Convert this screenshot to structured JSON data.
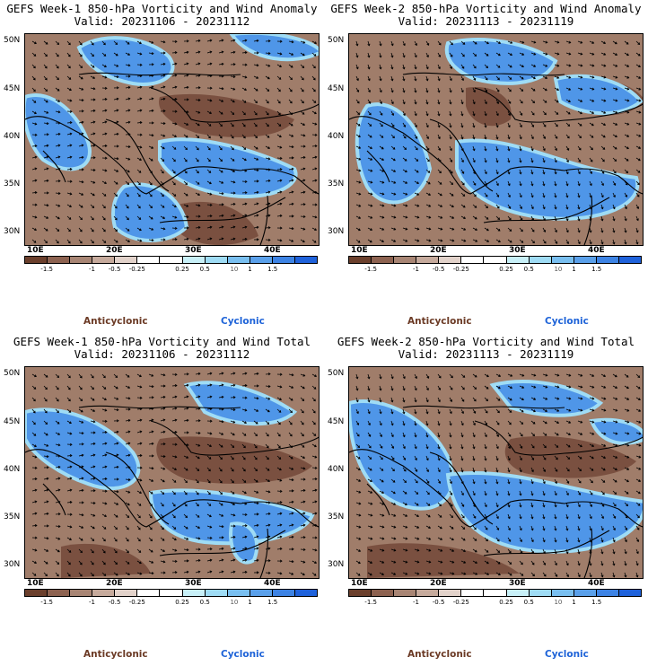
{
  "panels": [
    {
      "title": "GEFS Week-1 850-hPa Vorticity and Wind Anomaly",
      "subtitle": "Valid: 20231106 - 20231112"
    },
    {
      "title": "GEFS Week-2 850-hPa Vorticity and Wind Anomaly",
      "subtitle": "Valid: 20231113 - 20231119"
    },
    {
      "title": "GEFS Week-1 850-hPa Vorticity and Wind Total",
      "subtitle": "Valid: 20231106 - 20231112"
    },
    {
      "title": "GEFS Week-2 850-hPa Vorticity and Wind Total",
      "subtitle": "Valid: 20231113 - 20231119"
    }
  ],
  "lat_labels": [
    "50N",
    "45N",
    "40N",
    "35N",
    "30N"
  ],
  "lon_labels": [
    "10E",
    "20E",
    "30E",
    "40E"
  ],
  "colorbar": {
    "colors": [
      "#6b3f2c",
      "#8d6250",
      "#a88574",
      "#c6aa9c",
      "#e2d2ca",
      "#ffffff",
      "#ffffff",
      "#c8f0f8",
      "#9fdcf5",
      "#79bff0",
      "#5aa0ea",
      "#3d83e4",
      "#1f62db"
    ],
    "tick_labels": [
      "-1.5",
      "-1",
      "-0.5",
      "-0.25",
      "0.25",
      "0.5",
      "1",
      "1.5"
    ],
    "scale_note": "10"
  },
  "legend": {
    "anticyclonic": "Anticyclonic",
    "cyclonic": "Cyclonic"
  },
  "colors": {
    "anticyclonic": "#6b3a25",
    "cyclonic": "#1e63d8",
    "brown_fill": "#a07d6a",
    "blue_fill": "#4f96e8"
  }
}
